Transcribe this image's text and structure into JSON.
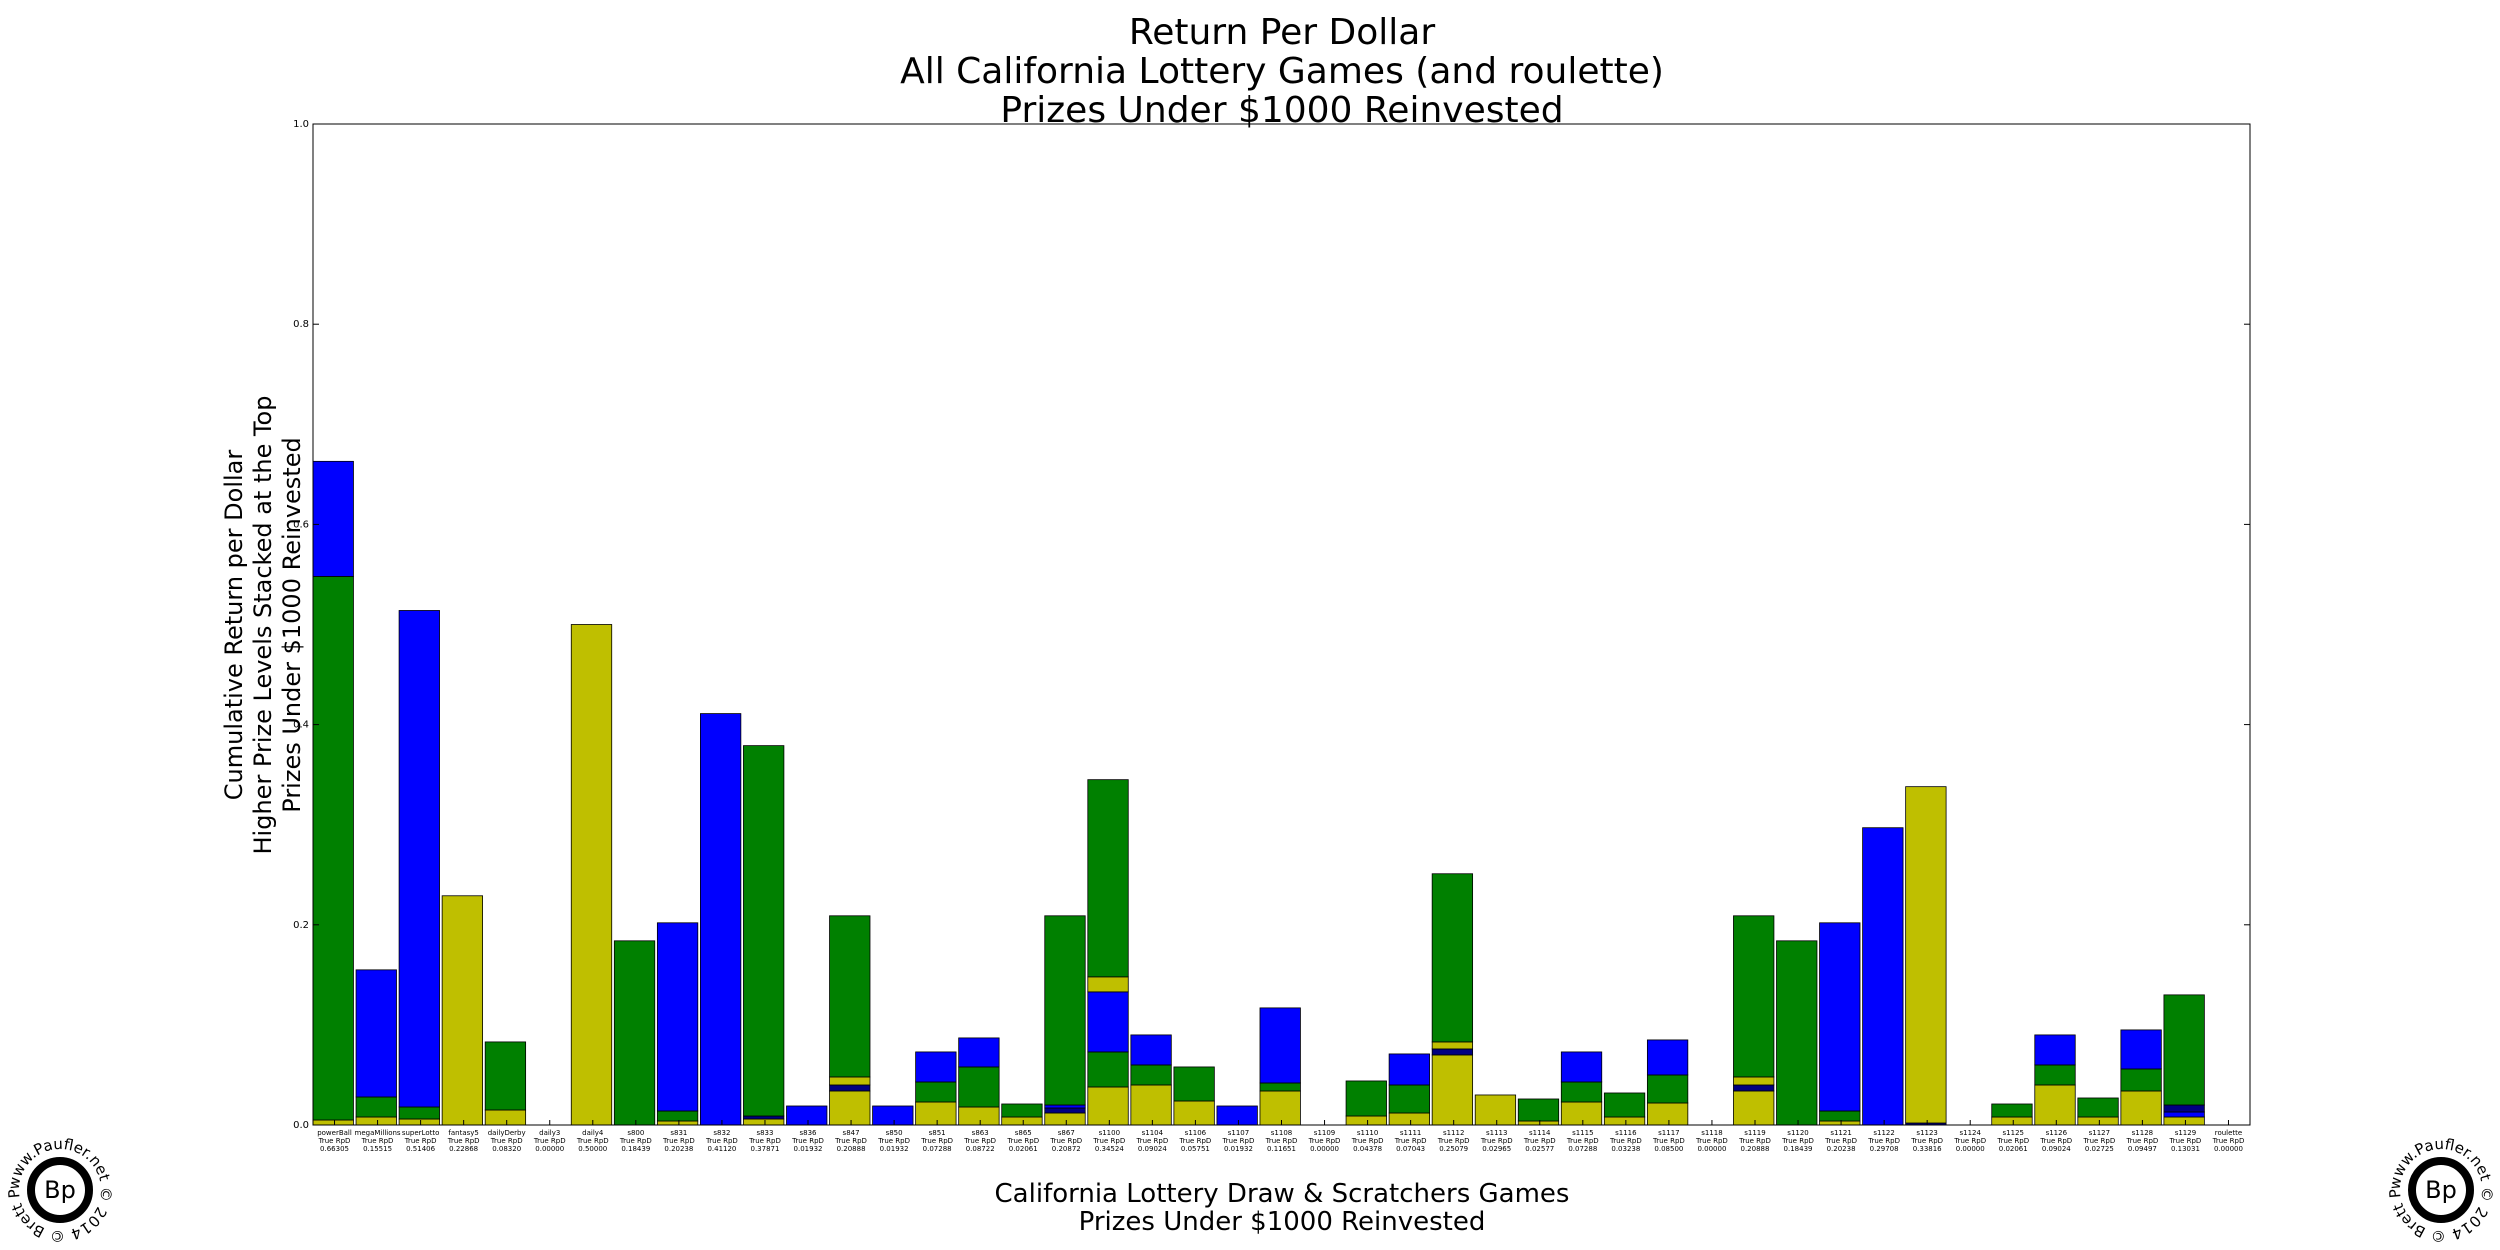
{
  "chart_data": {
    "type": "bar",
    "stacked": true,
    "title": [
      "Return Per Dollar",
      "All California Lottery Games (and roulette)",
      "Prizes Under $1000 Reinvested"
    ],
    "xlabel": [
      "California Lottery Draw & Scratchers Games",
      "Prizes Under $1000 Reinvested"
    ],
    "ylabel": [
      "Cumulative Return per Dollar",
      "Higher Prize Levels Stacked at the Top",
      "Prizes Under $1000 Reinvested"
    ],
    "ylim": [
      0,
      1
    ],
    "yticks": [
      "0.0",
      "0.2",
      "0.4",
      "0.6",
      "0.8",
      "1.0"
    ],
    "grid": false,
    "legend": "none",
    "colors": {
      "yellow": "#bfbf00",
      "green": "#008000",
      "blue": "#0000ff",
      "navy": "#000080"
    },
    "sublabel": "True RpD",
    "categories": [
      {
        "name": "powerBall",
        "rpd": "0.66305",
        "segments": [
          [
            "yellow",
            0.005
          ],
          [
            "green",
            0.543
          ],
          [
            "blue",
            0.115
          ]
        ]
      },
      {
        "name": "megaMillions",
        "rpd": "0.15515",
        "segments": [
          [
            "yellow",
            0.008
          ],
          [
            "green",
            0.02
          ],
          [
            "blue",
            0.127
          ]
        ]
      },
      {
        "name": "superLotto",
        "rpd": "0.51406",
        "segments": [
          [
            "yellow",
            0.006
          ],
          [
            "green",
            0.012
          ],
          [
            "blue",
            0.496
          ]
        ]
      },
      {
        "name": "fantasy5",
        "rpd": "0.22868",
        "segments": [
          [
            "yellow",
            0.229
          ]
        ]
      },
      {
        "name": "dailyDerby",
        "rpd": "0.08320",
        "segments": [
          [
            "yellow",
            0.015
          ],
          [
            "green",
            0.068
          ]
        ]
      },
      {
        "name": "daily3",
        "rpd": "0.00000",
        "segments": []
      },
      {
        "name": "daily4",
        "rpd": "0.50000",
        "segments": [
          [
            "yellow",
            0.5
          ]
        ]
      },
      {
        "name": "s800",
        "rpd": "0.18439",
        "segments": [
          [
            "green",
            0.184
          ]
        ]
      },
      {
        "name": "s831",
        "rpd": "0.20238",
        "segments": [
          [
            "yellow",
            0.004
          ],
          [
            "green",
            0.01
          ],
          [
            "blue",
            0.188
          ]
        ]
      },
      {
        "name": "s832",
        "rpd": "0.41120",
        "segments": [
          [
            "blue",
            0.411
          ]
        ]
      },
      {
        "name": "s833",
        "rpd": "0.37871",
        "segments": [
          [
            "yellow",
            0.006
          ],
          [
            "navy",
            0.003
          ],
          [
            "green",
            0.37
          ]
        ]
      },
      {
        "name": "s836",
        "rpd": "0.01932",
        "segments": [
          [
            "blue",
            0.019
          ]
        ]
      },
      {
        "name": "s847",
        "rpd": "0.20888",
        "segments": [
          [
            "yellow",
            0.034
          ],
          [
            "navy",
            0.006
          ],
          [
            "yellow",
            0.008
          ],
          [
            "green",
            0.161
          ]
        ]
      },
      {
        "name": "s850",
        "rpd": "0.01932",
        "segments": [
          [
            "blue",
            0.019
          ]
        ]
      },
      {
        "name": "s851",
        "rpd": "0.07288",
        "segments": [
          [
            "yellow",
            0.023
          ],
          [
            "green",
            0.02
          ],
          [
            "blue",
            0.03
          ]
        ]
      },
      {
        "name": "s863",
        "rpd": "0.08722",
        "segments": [
          [
            "yellow",
            0.018
          ],
          [
            "green",
            0.04
          ],
          [
            "blue",
            0.029
          ]
        ]
      },
      {
        "name": "s865",
        "rpd": "0.02061",
        "segments": [
          [
            "yellow",
            0.008
          ],
          [
            "green",
            0.013
          ]
        ]
      },
      {
        "name": "s867",
        "rpd": "0.20872",
        "segments": [
          [
            "yellow",
            0.012
          ],
          [
            "navy",
            0.005
          ],
          [
            "blue",
            0.003
          ],
          [
            "green",
            0.189
          ]
        ]
      },
      {
        "name": "s1100",
        "rpd": "0.34524",
        "segments": [
          [
            "yellow",
            0.038
          ],
          [
            "green",
            0.035
          ],
          [
            "blue",
            0.06
          ],
          [
            "yellow",
            0.015
          ],
          [
            "green",
            0.197
          ]
        ]
      },
      {
        "name": "s1104",
        "rpd": "0.09024",
        "segments": [
          [
            "yellow",
            0.04
          ],
          [
            "green",
            0.02
          ],
          [
            "blue",
            0.03
          ]
        ]
      },
      {
        "name": "s1106",
        "rpd": "0.05751",
        "segments": [
          [
            "yellow",
            0.024
          ],
          [
            "green",
            0.034
          ]
        ]
      },
      {
        "name": "s1107",
        "rpd": "0.01932",
        "segments": [
          [
            "blue",
            0.019
          ]
        ]
      },
      {
        "name": "s1108",
        "rpd": "0.11651",
        "segments": [
          [
            "yellow",
            0.034
          ],
          [
            "green",
            0.008
          ],
          [
            "blue",
            0.075
          ]
        ]
      },
      {
        "name": "s1109",
        "rpd": "0.00000",
        "segments": []
      },
      {
        "name": "s1110",
        "rpd": "0.04378",
        "segments": [
          [
            "yellow",
            0.009
          ],
          [
            "green",
            0.035
          ]
        ]
      },
      {
        "name": "s1111",
        "rpd": "0.07043",
        "segments": [
          [
            "yellow",
            0.012
          ],
          [
            "green",
            0.028
          ],
          [
            "blue",
            0.031
          ]
        ]
      },
      {
        "name": "s1112",
        "rpd": "0.25079",
        "segments": [
          [
            "yellow",
            0.07
          ],
          [
            "navy",
            0.006
          ],
          [
            "yellow",
            0.007
          ],
          [
            "green",
            0.168
          ]
        ]
      },
      {
        "name": "s1113",
        "rpd": "0.02965",
        "segments": [
          [
            "yellow",
            0.03
          ]
        ]
      },
      {
        "name": "s1114",
        "rpd": "0.02577",
        "segments": [
          [
            "yellow",
            0.004
          ],
          [
            "green",
            0.022
          ]
        ]
      },
      {
        "name": "s1115",
        "rpd": "0.07288",
        "segments": [
          [
            "yellow",
            0.023
          ],
          [
            "green",
            0.02
          ],
          [
            "blue",
            0.03
          ]
        ]
      },
      {
        "name": "s1116",
        "rpd": "0.03238",
        "segments": [
          [
            "yellow",
            0.008
          ],
          [
            "green",
            0.024
          ]
        ]
      },
      {
        "name": "s1117",
        "rpd": "0.08500",
        "segments": [
          [
            "yellow",
            0.022
          ],
          [
            "green",
            0.028
          ],
          [
            "blue",
            0.035
          ]
        ]
      },
      {
        "name": "s1118",
        "rpd": "0.00000",
        "segments": []
      },
      {
        "name": "s1119",
        "rpd": "0.20888",
        "segments": [
          [
            "yellow",
            0.034
          ],
          [
            "navy",
            0.006
          ],
          [
            "yellow",
            0.008
          ],
          [
            "green",
            0.161
          ]
        ]
      },
      {
        "name": "s1120",
        "rpd": "0.18439",
        "segments": [
          [
            "green",
            0.184
          ]
        ]
      },
      {
        "name": "s1121",
        "rpd": "0.20238",
        "segments": [
          [
            "yellow",
            0.004
          ],
          [
            "green",
            0.01
          ],
          [
            "blue",
            0.188
          ]
        ]
      },
      {
        "name": "s1122",
        "rpd": "0.29708",
        "segments": [
          [
            "blue",
            0.297
          ]
        ]
      },
      {
        "name": "s1123",
        "rpd": "0.33816",
        "segments": [
          [
            "navy",
            0.002
          ],
          [
            "yellow",
            0.336
          ]
        ]
      },
      {
        "name": "s1124",
        "rpd": "0.00000",
        "segments": []
      },
      {
        "name": "s1125",
        "rpd": "0.02061",
        "segments": [
          [
            "yellow",
            0.008
          ],
          [
            "green",
            0.013
          ]
        ]
      },
      {
        "name": "s1126",
        "rpd": "0.09024",
        "segments": [
          [
            "yellow",
            0.04
          ],
          [
            "green",
            0.02
          ],
          [
            "blue",
            0.03
          ]
        ]
      },
      {
        "name": "s1127",
        "rpd": "0.02725",
        "segments": [
          [
            "yellow",
            0.008
          ],
          [
            "green",
            0.019
          ]
        ]
      },
      {
        "name": "s1128",
        "rpd": "0.09497",
        "segments": [
          [
            "yellow",
            0.034
          ],
          [
            "green",
            0.022
          ],
          [
            "blue",
            0.039
          ]
        ]
      },
      {
        "name": "s1129",
        "rpd": "0.13031",
        "segments": [
          [
            "yellow",
            0.008
          ],
          [
            "blue",
            0.005
          ],
          [
            "navy",
            0.007
          ],
          [
            "green",
            0.11
          ]
        ]
      },
      {
        "name": "roulette",
        "rpd": "0.00000",
        "segments": []
      }
    ]
  },
  "watermark": {
    "text": "www.Paufler.net © 2014 © Brett Paufler",
    "monogram": "Bp"
  }
}
